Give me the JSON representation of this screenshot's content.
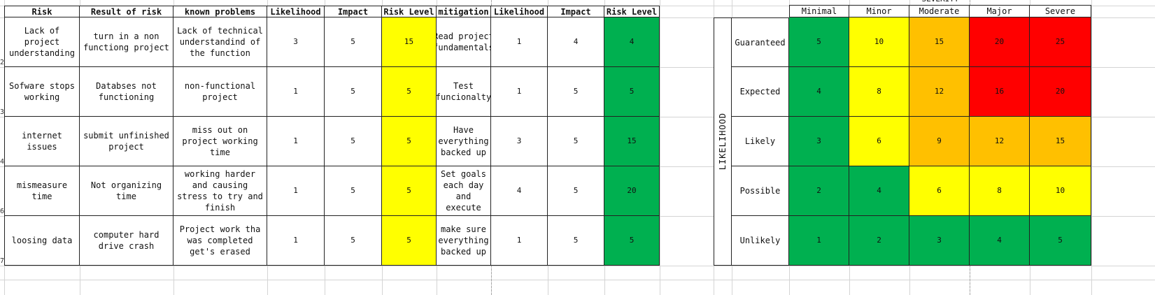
{
  "risk_table": {
    "headers": [
      "Risk",
      "Result of risk",
      "known problems",
      "Likelihood",
      "Impact",
      "Risk Level",
      "mitigation",
      "Likelihood",
      "Impact",
      "Risk Level"
    ],
    "rows": [
      {
        "num": "2",
        "cells": [
          "Lack of project understanding",
          "turn in a non functiong project",
          "Lack of technical understandind of the function",
          "3",
          "5",
          "15",
          "Read project fundamentals",
          "1",
          "4",
          "4"
        ]
      },
      {
        "num": "3",
        "cells": [
          "Sofware stops working",
          "Databses not functioning",
          "non-functional project",
          "1",
          "5",
          "5",
          "Test funcionalty",
          "1",
          "5",
          "5"
        ]
      },
      {
        "num": "4",
        "cells": [
          "internet issues",
          "submit unfinished project",
          "miss out on project working time",
          "1",
          "5",
          "5",
          "Have everything backed up",
          "3",
          "5",
          "15"
        ]
      },
      {
        "num": "6",
        "cells": [
          "mismeasure time",
          "Not organizing time",
          "working harder and causing stress to try and finish",
          "1",
          "5",
          "5",
          "Set goals each day and execute",
          "4",
          "5",
          "20"
        ]
      },
      {
        "num": "7",
        "cells": [
          "loosing data",
          "computer hard drive crash",
          "Project work tha was completed get's erased",
          "1",
          "5",
          "5",
          "make sure everything backed up",
          "1",
          "5",
          "5"
        ]
      }
    ],
    "colors": {
      "risk_level_before": "#ffff00",
      "risk_level_after": "#00b050"
    }
  },
  "matrix": {
    "severity_title": "SEVERITY",
    "likelihood_title": "LIKELIHOOD",
    "columns": [
      "Minimal",
      "Minor",
      "Moderate",
      "Major",
      "Severe"
    ],
    "rows": [
      {
        "label": "Guaranteed",
        "values": [
          "5",
          "10",
          "15",
          "20",
          "25"
        ],
        "colors": [
          "green",
          "yellow",
          "orange",
          "red",
          "red"
        ]
      },
      {
        "label": "Expected",
        "values": [
          "4",
          "8",
          "12",
          "16",
          "20"
        ],
        "colors": [
          "green",
          "yellow",
          "orange",
          "red",
          "red"
        ]
      },
      {
        "label": "Likely",
        "values": [
          "3",
          "6",
          "9",
          "12",
          "15"
        ],
        "colors": [
          "green",
          "yellow",
          "orange",
          "orange",
          "orange"
        ]
      },
      {
        "label": "Possible",
        "values": [
          "2",
          "4",
          "6",
          "8",
          "10"
        ],
        "colors": [
          "green",
          "green",
          "yellow",
          "yellow",
          "yellow"
        ]
      },
      {
        "label": "Unlikely",
        "values": [
          "1",
          "2",
          "3",
          "4",
          "5"
        ],
        "colors": [
          "green",
          "green",
          "green",
          "green",
          "green"
        ]
      }
    ],
    "palette": {
      "green": "#00b050",
      "yellow": "#ffff00",
      "orange": "#ffc000",
      "red": "#ff0000"
    }
  }
}
